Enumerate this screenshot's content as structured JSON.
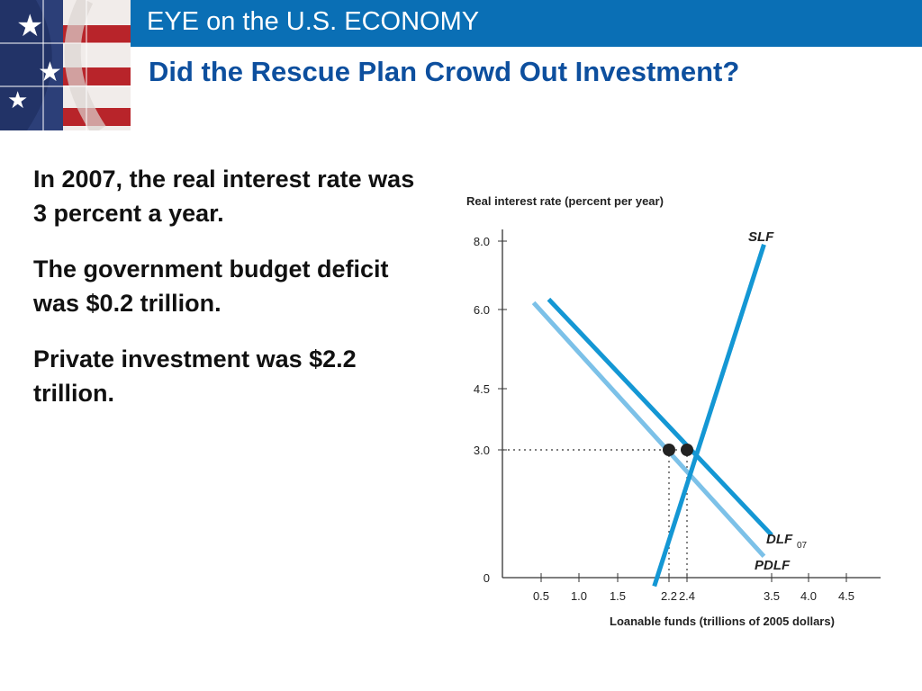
{
  "header": {
    "title": "EYE on the U.S. ECONOMY"
  },
  "slide": {
    "title": "Did the Rescue Plan Crowd Out Investment?"
  },
  "body": {
    "paragraphs": [
      "In 2007, the real interest rate was 3 percent a year.",
      "The government budget deficit was $0.2 trillion.",
      "Private investment was $2.2 trillion."
    ]
  },
  "colors": {
    "header_bar": "#0a6fb5",
    "title": "#0d4f9e",
    "dark_curve": "#1497d4",
    "light_curve": "#7cc1e8"
  },
  "chart_data": {
    "type": "line",
    "ylabel": "Real interest rate (percent per year)",
    "xlabel": "Loanable funds (trillions of 2005 dollars)",
    "x_ticks": [
      "0.5",
      "1.0",
      "1.5",
      "2.2",
      "2.4",
      "3.5",
      "4.0",
      "4.5"
    ],
    "y_ticks": [
      "0",
      "3.0",
      "4.5",
      "6.0",
      "8.0"
    ],
    "series": [
      {
        "name": "SLF",
        "points": [
          [
            2.0,
            -0.2
          ],
          [
            3.4,
            7.9
          ]
        ]
      },
      {
        "name": "DLF",
        "subscript": "07",
        "points": [
          [
            0.6,
            6.3
          ],
          [
            3.5,
            1.0
          ]
        ]
      },
      {
        "name": "PDLF",
        "points": [
          [
            0.4,
            6.2
          ],
          [
            3.4,
            0.5
          ]
        ]
      }
    ],
    "equilibrium_points": [
      [
        2.2,
        3.0
      ],
      [
        2.4,
        3.0
      ]
    ],
    "equilibrium_rate": 3.0
  }
}
